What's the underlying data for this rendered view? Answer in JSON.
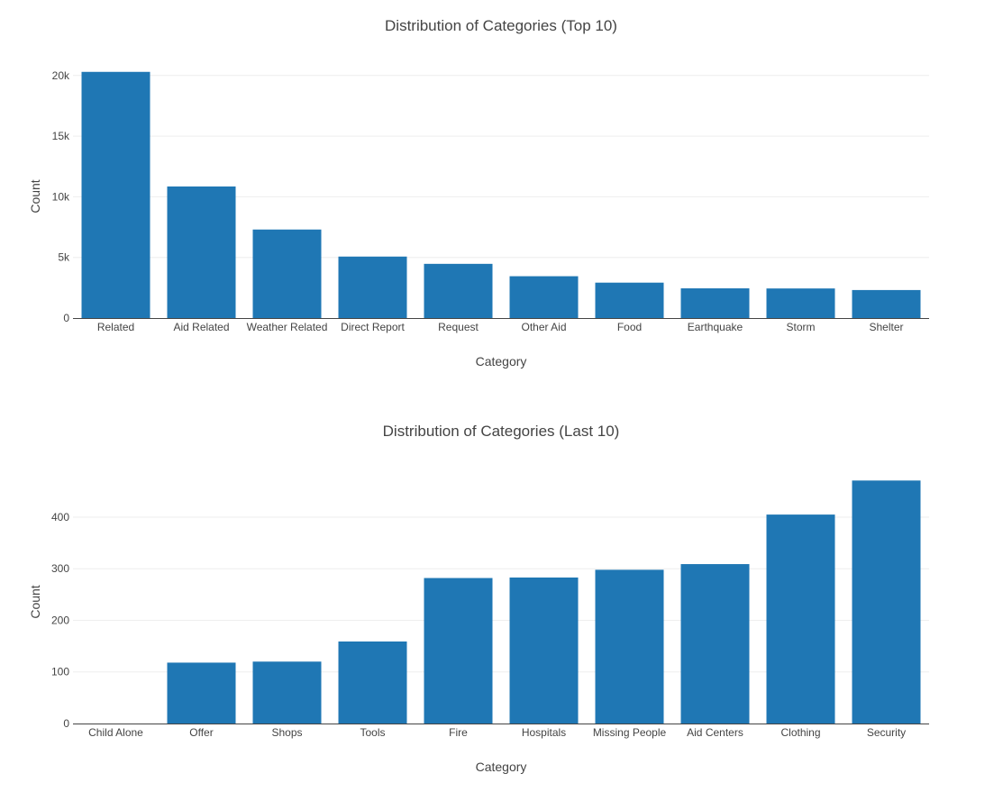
{
  "chart_data": [
    {
      "type": "bar",
      "title": "Distribution of Categories (Top 10)",
      "xlabel": "Category",
      "ylabel": "Count",
      "categories": [
        "Related",
        "Aid Related",
        "Weather Related",
        "Direct Report",
        "Request",
        "Other Aid",
        "Food",
        "Earthquake",
        "Storm",
        "Shelter"
      ],
      "values": [
        20300,
        10850,
        7300,
        5070,
        4470,
        3450,
        2920,
        2450,
        2440,
        2310
      ],
      "ylim": [
        0,
        21100
      ],
      "yticks": [
        0,
        5000,
        10000,
        15000,
        20000
      ],
      "ytick_labels": [
        "0",
        "5k",
        "10k",
        "15k",
        "20k"
      ],
      "color": "#1f77b4",
      "grid": true,
      "legend": "none"
    },
    {
      "type": "bar",
      "title": "Distribution of Categories (Last 10)",
      "xlabel": "Category",
      "ylabel": "Count",
      "categories": [
        "Child Alone",
        "Offer",
        "Shops",
        "Tools",
        "Fire",
        "Hospitals",
        "Missing People",
        "Aid Centers",
        "Clothing",
        "Security"
      ],
      "values": [
        0,
        118,
        120,
        159,
        282,
        283,
        298,
        309,
        405,
        471
      ],
      "ylim": [
        0,
        496
      ],
      "yticks": [
        0,
        100,
        200,
        300,
        400
      ],
      "ytick_labels": [
        "0",
        "100",
        "200",
        "300",
        "400"
      ],
      "color": "#1f77b4",
      "grid": true,
      "legend": "none"
    }
  ]
}
